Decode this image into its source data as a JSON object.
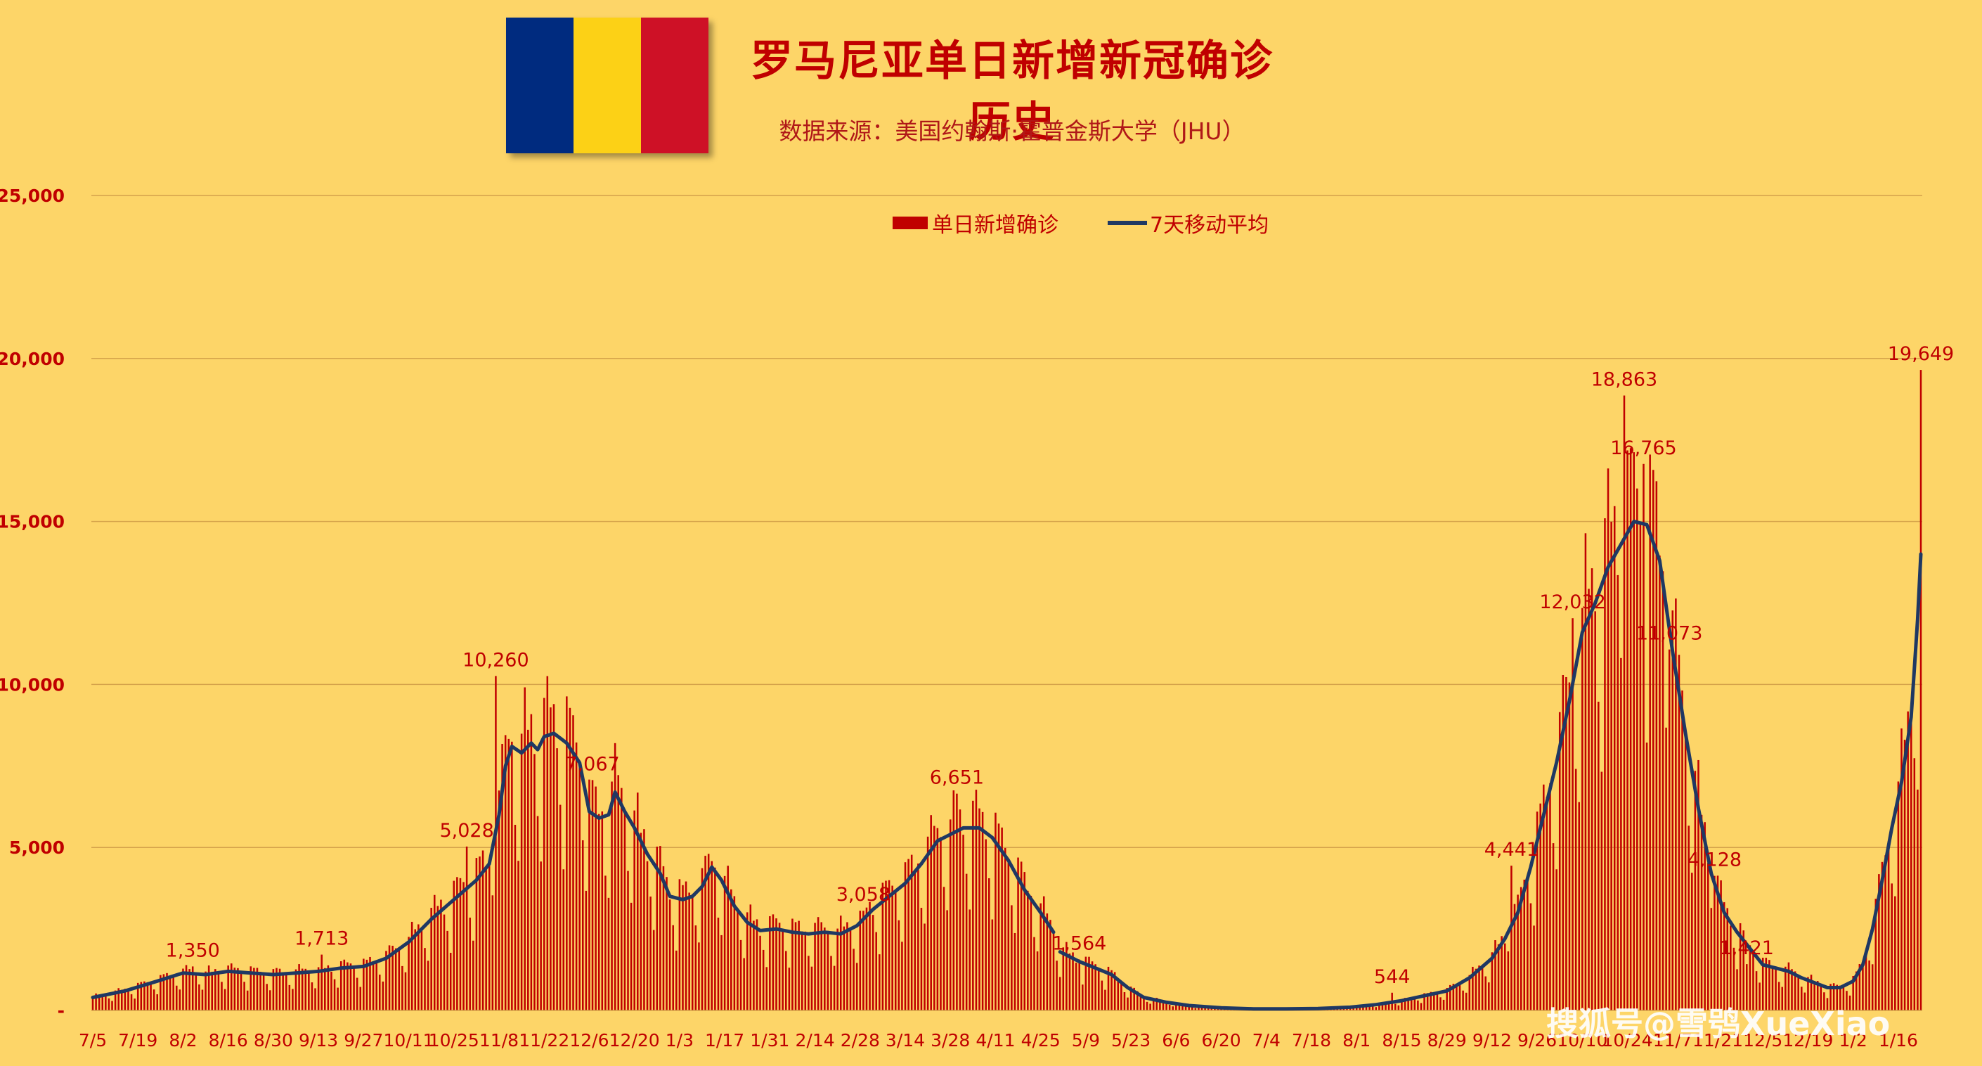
{
  "title": "罗马尼亚单日新增新冠确诊历史",
  "subtitle": "数据来源：美国约翰斯·霍普金斯大学（JHU）",
  "watermark": "搜狐号@雪鸮XueXiao",
  "flag_colors": [
    "#002B7F",
    "#FCD116",
    "#CE1126"
  ],
  "colors": {
    "bar": "#C00000",
    "line": "#1F3863",
    "grid": "#D4A24A",
    "text": "#C00000",
    "background": "#FDD568"
  },
  "chart_data": {
    "type": "bar",
    "legend": {
      "bar_label": "单日新增确诊",
      "line_label": "7天移动平均",
      "placement": "top-center"
    },
    "y_ticks": [
      {
        "value": 0,
        "label": "-"
      },
      {
        "value": 5000,
        "label": "5,000"
      },
      {
        "value": 10000,
        "label": "10,000"
      },
      {
        "value": 15000,
        "label": "15,000"
      },
      {
        "value": 20000,
        "label": "20,000"
      },
      {
        "value": 25000,
        "label": "25,000"
      }
    ],
    "ylim": [
      0,
      25000
    ],
    "x_range": [
      0,
      567
    ],
    "x_ticks": [
      {
        "day": 0,
        "label": "7/5"
      },
      {
        "day": 14,
        "label": "7/19"
      },
      {
        "day": 28,
        "label": "8/2"
      },
      {
        "day": 42,
        "label": "8/16"
      },
      {
        "day": 56,
        "label": "8/30"
      },
      {
        "day": 70,
        "label": "9/13"
      },
      {
        "day": 84,
        "label": "9/27"
      },
      {
        "day": 98,
        "label": "10/11"
      },
      {
        "day": 112,
        "label": "10/25"
      },
      {
        "day": 126,
        "label": "11/8"
      },
      {
        "day": 140,
        "label": "11/22"
      },
      {
        "day": 154,
        "label": "12/6"
      },
      {
        "day": 168,
        "label": "12/20"
      },
      {
        "day": 182,
        "label": "1/3"
      },
      {
        "day": 196,
        "label": "1/17"
      },
      {
        "day": 210,
        "label": "1/31"
      },
      {
        "day": 224,
        "label": "2/14"
      },
      {
        "day": 238,
        "label": "2/28"
      },
      {
        "day": 252,
        "label": "3/14"
      },
      {
        "day": 266,
        "label": "3/28"
      },
      {
        "day": 280,
        "label": "4/11"
      },
      {
        "day": 294,
        "label": "4/25"
      },
      {
        "day": 308,
        "label": "5/9"
      },
      {
        "day": 322,
        "label": "5/23"
      },
      {
        "day": 336,
        "label": "6/6"
      },
      {
        "day": 350,
        "label": "6/20"
      },
      {
        "day": 364,
        "label": "7/4"
      },
      {
        "day": 378,
        "label": "7/18"
      },
      {
        "day": 392,
        "label": "8/1"
      },
      {
        "day": 406,
        "label": "8/15"
      },
      {
        "day": 420,
        "label": "8/29"
      },
      {
        "day": 434,
        "label": "9/12"
      },
      {
        "day": 448,
        "label": "9/26"
      },
      {
        "day": 462,
        "label": "10/10"
      },
      {
        "day": 476,
        "label": "10/24"
      },
      {
        "day": 490,
        "label": "11/7"
      },
      {
        "day": 504,
        "label": "11/21"
      },
      {
        "day": 518,
        "label": "12/5"
      },
      {
        "day": 532,
        "label": "12/19"
      },
      {
        "day": 546,
        "label": "1/2"
      },
      {
        "day": 560,
        "label": "1/16"
      }
    ],
    "moving_average": [
      [
        0,
        400
      ],
      [
        10,
        600
      ],
      [
        20,
        900
      ],
      [
        28,
        1150
      ],
      [
        35,
        1100
      ],
      [
        42,
        1200
      ],
      [
        49,
        1150
      ],
      [
        56,
        1100
      ],
      [
        63,
        1150
      ],
      [
        70,
        1200
      ],
      [
        77,
        1300
      ],
      [
        84,
        1350
      ],
      [
        91,
        1600
      ],
      [
        98,
        2100
      ],
      [
        105,
        2800
      ],
      [
        112,
        3400
      ],
      [
        119,
        4000
      ],
      [
        123,
        4500
      ],
      [
        126,
        6000
      ],
      [
        128,
        7500
      ],
      [
        130,
        8100
      ],
      [
        133,
        7900
      ],
      [
        136,
        8200
      ],
      [
        138,
        8000
      ],
      [
        140,
        8400
      ],
      [
        143,
        8500
      ],
      [
        147,
        8200
      ],
      [
        151,
        7600
      ],
      [
        154,
        6100
      ],
      [
        157,
        5900
      ],
      [
        160,
        6000
      ],
      [
        162,
        6700
      ],
      [
        165,
        6100
      ],
      [
        168,
        5600
      ],
      [
        172,
        4800
      ],
      [
        176,
        4200
      ],
      [
        179,
        3500
      ],
      [
        183,
        3400
      ],
      [
        186,
        3500
      ],
      [
        189,
        3800
      ],
      [
        192,
        4400
      ],
      [
        195,
        4000
      ],
      [
        199,
        3200
      ],
      [
        203,
        2700
      ],
      [
        207,
        2450
      ],
      [
        212,
        2500
      ],
      [
        217,
        2400
      ],
      [
        222,
        2350
      ],
      [
        227,
        2400
      ],
      [
        232,
        2350
      ],
      [
        237,
        2600
      ],
      [
        242,
        3100
      ],
      [
        247,
        3500
      ],
      [
        252,
        3900
      ],
      [
        257,
        4500
      ],
      [
        262,
        5200
      ],
      [
        266,
        5400
      ],
      [
        270,
        5600
      ],
      [
        275,
        5600
      ],
      [
        279,
        5300
      ],
      [
        284,
        4600
      ],
      [
        289,
        3700
      ],
      [
        294,
        3000
      ],
      [
        298,
        2400
      ]
    ],
    "moving_average_2": [
      [
        300,
        1800
      ],
      [
        306,
        1500
      ],
      [
        311,
        1300
      ],
      [
        316,
        1100
      ],
      [
        321,
        700
      ],
      [
        326,
        400
      ],
      [
        333,
        250
      ],
      [
        340,
        150
      ],
      [
        350,
        80
      ],
      [
        360,
        50
      ],
      [
        370,
        50
      ],
      [
        380,
        60
      ],
      [
        390,
        100
      ],
      [
        398,
        180
      ],
      [
        406,
        300
      ],
      [
        413,
        450
      ],
      [
        420,
        600
      ],
      [
        427,
        1000
      ],
      [
        434,
        1600
      ],
      [
        438,
        2200
      ],
      [
        442,
        3000
      ],
      [
        446,
        4400
      ],
      [
        450,
        6000
      ],
      [
        454,
        7600
      ],
      [
        458,
        9500
      ],
      [
        462,
        11600
      ],
      [
        466,
        12500
      ],
      [
        470,
        13600
      ],
      [
        474,
        14300
      ],
      [
        478,
        15000
      ],
      [
        482,
        14900
      ],
      [
        486,
        13800
      ],
      [
        490,
        11000
      ],
      [
        494,
        8500
      ],
      [
        498,
        6200
      ],
      [
        502,
        4200
      ],
      [
        506,
        3000
      ],
      [
        510,
        2400
      ],
      [
        514,
        1900
      ],
      [
        518,
        1400
      ],
      [
        522,
        1300
      ],
      [
        526,
        1200
      ],
      [
        530,
        1000
      ],
      [
        534,
        850
      ],
      [
        538,
        700
      ],
      [
        542,
        700
      ],
      [
        546,
        900
      ],
      [
        549,
        1400
      ],
      [
        552,
        2500
      ],
      [
        555,
        4000
      ],
      [
        558,
        5600
      ],
      [
        561,
        7000
      ],
      [
        564,
        9000
      ],
      [
        566,
        12000
      ],
      [
        567,
        14000
      ]
    ],
    "data_labels": [
      {
        "day": 31,
        "value": 1350,
        "label": "1,350"
      },
      {
        "day": 71,
        "value": 1713,
        "label": "1,713"
      },
      {
        "day": 116,
        "value": 5028,
        "label": "5,028"
      },
      {
        "day": 125,
        "value": 10260,
        "label": "10,260"
      },
      {
        "day": 155,
        "value": 7067,
        "label": "7,067"
      },
      {
        "day": 239,
        "value": 3058,
        "label": "3,058"
      },
      {
        "day": 268,
        "value": 6651,
        "label": "6,651"
      },
      {
        "day": 306,
        "value": 1564,
        "label": "1,564"
      },
      {
        "day": 403,
        "value": 544,
        "label": "544"
      },
      {
        "day": 440,
        "value": 4441,
        "label": "4,441"
      },
      {
        "day": 459,
        "value": 12032,
        "label": "12,032"
      },
      {
        "day": 475,
        "value": 18863,
        "label": "18,863"
      },
      {
        "day": 481,
        "value": 16765,
        "label": "16,765"
      },
      {
        "day": 489,
        "value": 11073,
        "label": "11,073"
      },
      {
        "day": 503,
        "value": 4128,
        "label": "4,128"
      },
      {
        "day": 513,
        "value": 1421,
        "label": "1,421"
      },
      {
        "day": 567,
        "value": 19649,
        "label": "19,649"
      }
    ]
  }
}
